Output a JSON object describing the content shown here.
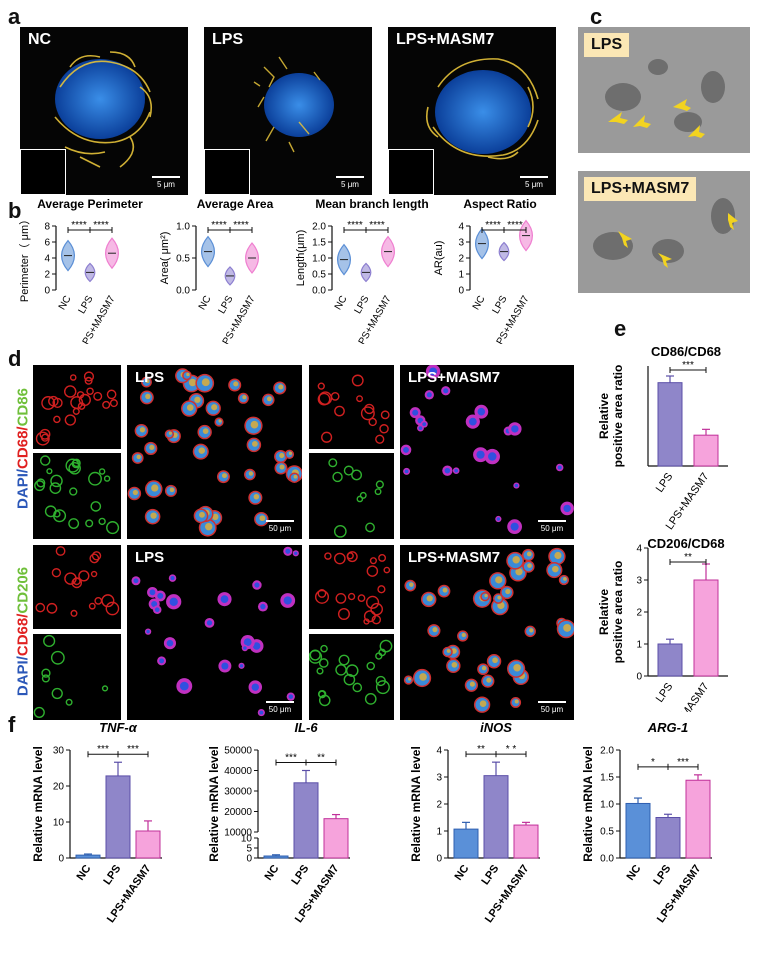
{
  "panel_labels": {
    "a": "a",
    "b": "b",
    "c": "c",
    "d": "d",
    "e": "e",
    "f": "f"
  },
  "panel_a": {
    "images": [
      {
        "label": "NC",
        "scale": "5 μm"
      },
      {
        "label": "LPS",
        "scale": "5 μm"
      },
      {
        "label": "LPS+MASM7",
        "scale": "5 μm"
      }
    ]
  },
  "panel_c": {
    "labels": [
      "LPS",
      "LPS+MASM7"
    ]
  },
  "panel_d": {
    "row_labels": [
      {
        "dapi": "DAPI/",
        "cd68": "CD68/",
        "marker": "CD86"
      },
      {
        "dapi": "DAPI/",
        "cd68": "CD68/",
        "marker": "CD206"
      }
    ],
    "image_labels": [
      "LPS",
      "LPS+MASM7",
      "LPS",
      "LPS+MASM7"
    ],
    "scale": "50 μm"
  },
  "colors": {
    "nc": "#5b8fd6",
    "lps": "#8d7fd0",
    "masm": "#ef7fd0",
    "lps_bar": "#8f86c9",
    "masm_bar": "#f6a3dc",
    "nc_bar": "#5a90d8"
  },
  "chart_data": [
    {
      "type": "violin",
      "title": "Average Perimeter",
      "ylabel": "Perimeter（ μm）",
      "categories": [
        "NC",
        "LPS",
        "LPS+MASM7"
      ],
      "ylim": [
        0,
        8
      ],
      "yticks": [
        0,
        2,
        4,
        6,
        8
      ],
      "medians": [
        4.3,
        2.2,
        4.6
      ],
      "significance": [
        "****",
        "****"
      ]
    },
    {
      "type": "violin",
      "title": "Average Area",
      "ylabel": "Area( μm²)",
      "categories": [
        "NC",
        "LPS",
        "LPS+MASM7"
      ],
      "ylim": [
        0,
        1.0
      ],
      "yticks": [
        0.0,
        0.5,
        1.0
      ],
      "medians": [
        0.6,
        0.22,
        0.5
      ],
      "significance": [
        "****",
        "****"
      ]
    },
    {
      "type": "violin",
      "title": "Mean branch length",
      "ylabel": "Length(μm)",
      "categories": [
        "NC",
        "LPS",
        "LPS+MASM7"
      ],
      "ylim": [
        0,
        2.0
      ],
      "yticks": [
        0.0,
        0.5,
        1.0,
        1.5,
        2.0
      ],
      "medians": [
        0.95,
        0.55,
        1.2
      ],
      "significance": [
        "****",
        "****"
      ]
    },
    {
      "type": "violin",
      "title": "Aspect Ratio",
      "ylabel": "AR(au)",
      "categories": [
        "NC",
        "LPS",
        "LPS+MASM7"
      ],
      "ylim": [
        0,
        4
      ],
      "yticks": [
        0,
        1,
        2,
        3,
        4
      ],
      "medians": [
        2.9,
        2.4,
        3.4
      ],
      "significance": [
        "****",
        "****"
      ]
    },
    {
      "type": "bar",
      "title": "CD86/CD68",
      "ylabel": "Relative positive area ratio",
      "categories": [
        "LPS",
        "LPS+MASM7"
      ],
      "values": [
        1.0,
        0.37
      ],
      "errors": [
        0.08,
        0.07
      ],
      "ylim": [
        0,
        1.2
      ],
      "significance": [
        "***"
      ]
    },
    {
      "type": "bar",
      "title": "CD206/CD68",
      "ylabel": "Relative positive area ratio",
      "categories": [
        "LPS",
        "LPS+MASM7"
      ],
      "values": [
        1.0,
        3.0
      ],
      "errors": [
        0.15,
        0.5
      ],
      "ylim": [
        0,
        4
      ],
      "yticks": [
        0,
        1,
        2,
        3,
        4
      ],
      "significance": [
        "**"
      ]
    },
    {
      "type": "bar",
      "title": "TNF-α",
      "ylabel": "Relative mRNA level",
      "categories": [
        "NC",
        "LPS",
        "LPS+MASM7"
      ],
      "values": [
        0.8,
        22.8,
        7.5
      ],
      "errors": [
        0.3,
        3.8,
        2.8
      ],
      "ylim": [
        0,
        30
      ],
      "yticks": [
        0,
        10,
        20,
        30
      ],
      "significance": [
        "***",
        "***"
      ]
    },
    {
      "type": "bar",
      "title": "IL-6",
      "ylabel": "Relative mRNA level",
      "categories": [
        "NC",
        "LPS",
        "LPS+MASM7"
      ],
      "values": [
        1.0,
        34000,
        16500
      ],
      "errors": [
        0.6,
        6000,
        2000
      ],
      "yticks": [
        "0",
        "5",
        "10",
        "10000",
        "20000",
        "30000",
        "40000",
        "50000"
      ],
      "significance": [
        "***",
        "**"
      ],
      "broken_axis": true
    },
    {
      "type": "bar",
      "title": "iNOS",
      "ylabel": "Relative mRNA level",
      "categories": [
        "NC",
        "LPS",
        "LPS+MASM7"
      ],
      "values": [
        1.07,
        3.05,
        1.22
      ],
      "errors": [
        0.25,
        0.5,
        0.1
      ],
      "ylim": [
        0,
        4
      ],
      "yticks": [
        0,
        1,
        2,
        3,
        4
      ],
      "significance": [
        "**",
        "* *"
      ]
    },
    {
      "type": "bar",
      "title": "ARG-1",
      "ylabel": "Relative mRNA level",
      "categories": [
        "NC",
        "LPS",
        "LPS+MASM7"
      ],
      "values": [
        1.01,
        0.75,
        1.44
      ],
      "errors": [
        0.1,
        0.06,
        0.1
      ],
      "ylim": [
        0,
        2.0
      ],
      "yticks": [
        0.0,
        0.5,
        1.0,
        1.5,
        2.0
      ],
      "significance": [
        "*",
        "***"
      ]
    }
  ]
}
